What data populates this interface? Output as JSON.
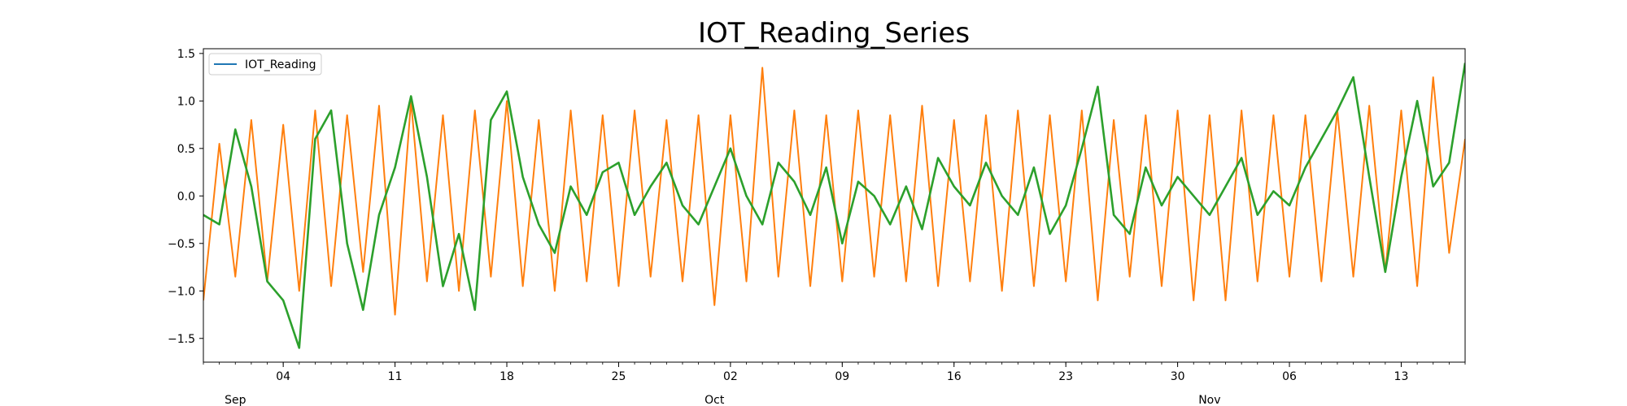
{
  "chart_data": {
    "type": "line",
    "title": "IOT_Reading_Series",
    "xlabel": "",
    "ylabel": "",
    "ylim": [
      -1.75,
      1.55
    ],
    "xlim": [
      "2023-08-30",
      "2023-11-17"
    ],
    "x_ticks_minor": [
      "04",
      "11",
      "18",
      "25",
      "02",
      "09",
      "16",
      "23",
      "30",
      "06",
      "13"
    ],
    "x_ticks_minor_dates": [
      "2023-09-04",
      "2023-09-11",
      "2023-09-18",
      "2023-09-25",
      "2023-10-02",
      "2023-10-09",
      "2023-10-16",
      "2023-10-23",
      "2023-10-30",
      "2023-11-06",
      "2023-11-13"
    ],
    "x_ticks_major": [
      "Sep",
      "Oct",
      "Nov"
    ],
    "x_ticks_major_dates": [
      "2023-09-01",
      "2023-10-01",
      "2023-11-01"
    ],
    "y_ticks": [
      "1.5",
      "1.0",
      "0.5",
      "0.0",
      "−0.5",
      "−1.0",
      "−1.5"
    ],
    "y_tick_values": [
      1.5,
      1.0,
      0.5,
      0.0,
      -0.5,
      -1.0,
      -1.5
    ],
    "grid": false,
    "legend": {
      "placement": "top-left",
      "entries": [
        {
          "label": "IOT_Reading",
          "color": "#1f77b4"
        }
      ]
    },
    "series": [
      {
        "color": "#ff7f0e",
        "x": [
          "2023-08-30",
          "2023-08-31",
          "2023-09-01",
          "2023-09-02",
          "2023-09-03",
          "2023-09-04",
          "2023-09-05",
          "2023-09-06",
          "2023-09-07",
          "2023-09-08",
          "2023-09-09",
          "2023-09-10",
          "2023-09-11",
          "2023-09-12",
          "2023-09-13",
          "2023-09-14",
          "2023-09-15",
          "2023-09-16",
          "2023-09-17",
          "2023-09-18",
          "2023-09-19",
          "2023-09-20",
          "2023-09-21",
          "2023-09-22",
          "2023-09-23",
          "2023-09-24",
          "2023-09-25",
          "2023-09-26",
          "2023-09-27",
          "2023-09-28",
          "2023-09-29",
          "2023-09-30",
          "2023-10-01",
          "2023-10-02",
          "2023-10-03",
          "2023-10-04",
          "2023-10-05",
          "2023-10-06",
          "2023-10-07",
          "2023-10-08",
          "2023-10-09",
          "2023-10-10",
          "2023-10-11",
          "2023-10-12",
          "2023-10-13",
          "2023-10-14",
          "2023-10-15",
          "2023-10-16",
          "2023-10-17",
          "2023-10-18",
          "2023-10-19",
          "2023-10-20",
          "2023-10-21",
          "2023-10-22",
          "2023-10-23",
          "2023-10-24",
          "2023-10-25",
          "2023-10-26",
          "2023-10-27",
          "2023-10-28",
          "2023-10-29",
          "2023-10-30",
          "2023-10-31",
          "2023-11-01",
          "2023-11-02",
          "2023-11-03",
          "2023-11-04",
          "2023-11-05",
          "2023-11-06",
          "2023-11-07",
          "2023-11-08",
          "2023-11-09",
          "2023-11-10",
          "2023-11-11",
          "2023-11-12",
          "2023-11-13",
          "2023-11-14",
          "2023-11-15",
          "2023-11-16",
          "2023-11-17"
        ],
        "values": [
          -1.1,
          0.55,
          -0.85,
          0.8,
          -0.9,
          0.75,
          -1.0,
          0.9,
          -0.95,
          0.85,
          -0.8,
          0.95,
          -1.25,
          1.0,
          -0.9,
          0.85,
          -1.0,
          0.9,
          -0.85,
          1.0,
          -0.95,
          0.8,
          -1.0,
          0.9,
          -0.9,
          0.85,
          -0.95,
          0.9,
          -0.85,
          0.8,
          -0.9,
          0.85,
          -1.15,
          0.85,
          -0.9,
          1.35,
          -0.85,
          0.9,
          -0.95,
          0.85,
          -0.9,
          0.9,
          -0.85,
          0.85,
          -0.9,
          0.95,
          -0.95,
          0.8,
          -0.9,
          0.85,
          -1.0,
          0.9,
          -0.95,
          0.85,
          -0.9,
          0.9,
          -1.1,
          0.8,
          -0.85,
          0.85,
          -0.95,
          0.9,
          -1.1,
          0.85,
          -1.1,
          0.9,
          -0.9,
          0.85,
          -0.85,
          0.85,
          -0.9,
          0.9,
          -0.85,
          0.95,
          -0.8,
          0.9,
          -0.95,
          1.25,
          -0.6,
          0.6
        ]
      },
      {
        "color": "#2ca02c",
        "x": [
          "2023-08-30",
          "2023-08-31",
          "2023-09-01",
          "2023-09-02",
          "2023-09-03",
          "2023-09-04",
          "2023-09-05",
          "2023-09-06",
          "2023-09-07",
          "2023-09-08",
          "2023-09-09",
          "2023-09-10",
          "2023-09-11",
          "2023-09-12",
          "2023-09-13",
          "2023-09-14",
          "2023-09-15",
          "2023-09-16",
          "2023-09-17",
          "2023-09-18",
          "2023-09-19",
          "2023-09-20",
          "2023-09-21",
          "2023-09-22",
          "2023-09-23",
          "2023-09-24",
          "2023-09-25",
          "2023-09-26",
          "2023-09-27",
          "2023-09-28",
          "2023-09-29",
          "2023-09-30",
          "2023-10-01",
          "2023-10-02",
          "2023-10-03",
          "2023-10-04",
          "2023-10-05",
          "2023-10-06",
          "2023-10-07",
          "2023-10-08",
          "2023-10-09",
          "2023-10-10",
          "2023-10-11",
          "2023-10-12",
          "2023-10-13",
          "2023-10-14",
          "2023-10-15",
          "2023-10-16",
          "2023-10-17",
          "2023-10-18",
          "2023-10-19",
          "2023-10-20",
          "2023-10-21",
          "2023-10-22",
          "2023-10-23",
          "2023-10-24",
          "2023-10-25",
          "2023-10-26",
          "2023-10-27",
          "2023-10-28",
          "2023-10-29",
          "2023-10-30",
          "2023-10-31",
          "2023-11-01",
          "2023-11-02",
          "2023-11-03",
          "2023-11-04",
          "2023-11-05",
          "2023-11-06",
          "2023-11-07",
          "2023-11-08",
          "2023-11-09",
          "2023-11-10",
          "2023-11-11",
          "2023-11-12",
          "2023-11-13",
          "2023-11-14",
          "2023-11-15",
          "2023-11-16",
          "2023-11-17"
        ],
        "values": [
          -0.2,
          -0.3,
          0.7,
          0.1,
          -0.9,
          -1.1,
          -1.6,
          0.6,
          0.9,
          -0.5,
          -1.2,
          -0.2,
          0.3,
          1.05,
          0.2,
          -0.95,
          -0.4,
          -1.2,
          0.8,
          1.1,
          0.2,
          -0.3,
          -0.6,
          0.1,
          -0.2,
          0.25,
          0.35,
          -0.2,
          0.1,
          0.35,
          -0.1,
          -0.3,
          0.1,
          0.5,
          0.0,
          -0.3,
          0.35,
          0.15,
          -0.2,
          0.3,
          -0.5,
          0.15,
          0.0,
          -0.3,
          0.1,
          -0.35,
          0.4,
          0.1,
          -0.1,
          0.35,
          0.0,
          -0.2,
          0.3,
          -0.4,
          -0.1,
          0.5,
          1.15,
          -0.2,
          -0.4,
          0.3,
          -0.1,
          0.2,
          0.0,
          -0.2,
          0.1,
          0.4,
          -0.2,
          0.05,
          -0.1,
          0.3,
          0.6,
          0.9,
          1.25,
          0.2,
          -0.8,
          0.2,
          1.0,
          0.1,
          0.35,
          1.4
        ]
      }
    ]
  }
}
